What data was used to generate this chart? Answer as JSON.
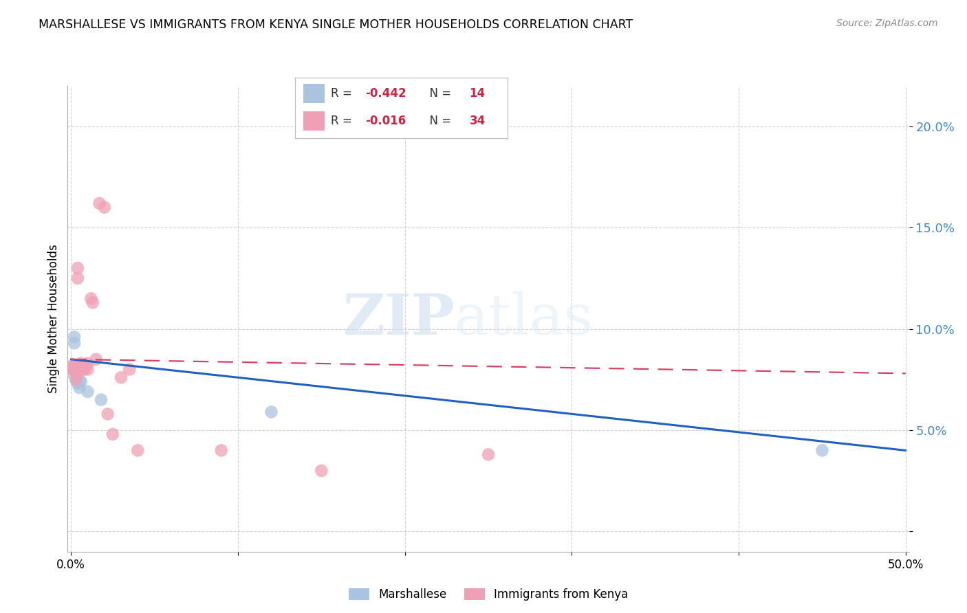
{
  "title": "MARSHALLESE VS IMMIGRANTS FROM KENYA SINGLE MOTHER HOUSEHOLDS CORRELATION CHART",
  "source": "Source: ZipAtlas.com",
  "ylabel": "Single Mother Households",
  "y_ticks": [
    0.0,
    0.05,
    0.1,
    0.15,
    0.2
  ],
  "y_tick_labels": [
    "",
    "5.0%",
    "10.0%",
    "15.0%",
    "20.0%"
  ],
  "x_lim": [
    -0.002,
    0.502
  ],
  "y_lim": [
    -0.01,
    0.22
  ],
  "marshallese_color": "#aac4e0",
  "kenya_color": "#f0a0b4",
  "marshallese_line_color": "#2060c0",
  "kenya_line_color": "#d84060",
  "watermark_zip": "ZIP",
  "watermark_atlas": "atlas",
  "marshallese_x": [
    0.001,
    0.002,
    0.002,
    0.003,
    0.003,
    0.004,
    0.004,
    0.005,
    0.005,
    0.006,
    0.01,
    0.018,
    0.45,
    0.12
  ],
  "marshallese_y": [
    0.078,
    0.096,
    0.093,
    0.082,
    0.075,
    0.078,
    0.073,
    0.074,
    0.071,
    0.074,
    0.069,
    0.065,
    0.04,
    0.059
  ],
  "kenya_x": [
    0.001,
    0.001,
    0.002,
    0.002,
    0.003,
    0.003,
    0.003,
    0.004,
    0.004,
    0.004,
    0.005,
    0.005,
    0.005,
    0.006,
    0.006,
    0.007,
    0.007,
    0.008,
    0.009,
    0.01,
    0.01,
    0.012,
    0.013,
    0.015,
    0.017,
    0.02,
    0.022,
    0.025,
    0.03,
    0.035,
    0.04,
    0.09,
    0.15,
    0.25
  ],
  "kenya_y": [
    0.08,
    0.082,
    0.08,
    0.082,
    0.08,
    0.082,
    0.075,
    0.125,
    0.13,
    0.078,
    0.082,
    0.08,
    0.082,
    0.08,
    0.083,
    0.08,
    0.082,
    0.08,
    0.082,
    0.08,
    0.083,
    0.115,
    0.113,
    0.085,
    0.162,
    0.16,
    0.058,
    0.048,
    0.076,
    0.08,
    0.04,
    0.04,
    0.03,
    0.038
  ],
  "legend_r1": "R = ",
  "legend_v1": "-0.442",
  "legend_n1_label": "N = ",
  "legend_n1": "14",
  "legend_r2": "R = ",
  "legend_v2": "-0.016",
  "legend_n2_label": "N = ",
  "legend_n2": "34",
  "bottom_label_m": "Marshallese",
  "bottom_label_k": "Immigrants from Kenya"
}
